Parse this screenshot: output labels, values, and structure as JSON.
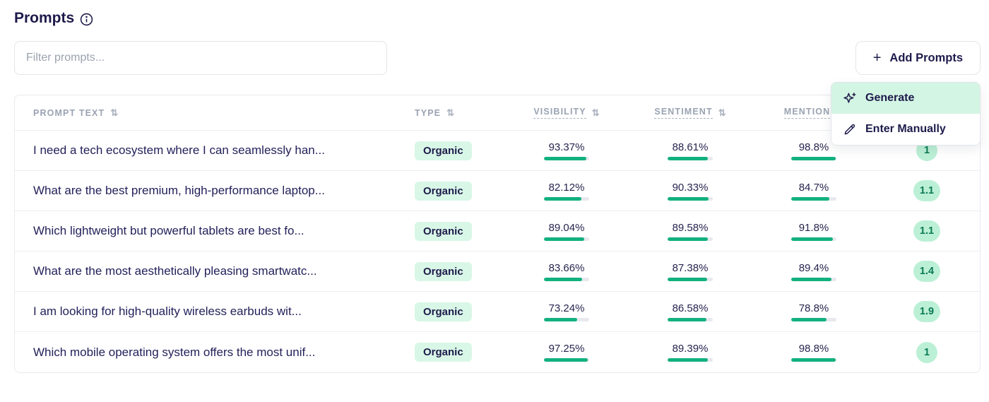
{
  "header": {
    "title": "Prompts"
  },
  "toolbar": {
    "filter_placeholder": "Filter prompts...",
    "add_button": {
      "plus": "+",
      "label": "Add Prompts"
    }
  },
  "menu": {
    "items": [
      {
        "icon": "sparkles-icon",
        "label": "Generate",
        "highlighted": true
      },
      {
        "icon": "pencil-icon",
        "label": "Enter Manually",
        "highlighted": false
      }
    ]
  },
  "table": {
    "sort_icon": "⇅",
    "columns": [
      {
        "label": "Prompt Text",
        "dashed": false
      },
      {
        "label": "Type",
        "dashed": false
      },
      {
        "label": "Visibility",
        "dashed": true
      },
      {
        "label": "Sentiment",
        "dashed": true
      },
      {
        "label": "Mention",
        "dashed": true
      },
      {
        "label": "",
        "dashed": false
      }
    ],
    "rows": [
      {
        "prompt": "I need a tech ecosystem where I can seamlessly han...",
        "type": "Organic",
        "visibility": 93.37,
        "sentiment": 88.61,
        "mention": 98.8,
        "position": "1"
      },
      {
        "prompt": "What are the best premium, high-performance laptop...",
        "type": "Organic",
        "visibility": 82.12,
        "sentiment": 90.33,
        "mention": 84.7,
        "position": "1.1"
      },
      {
        "prompt": "Which lightweight but powerful tablets are best fo...",
        "type": "Organic",
        "visibility": 89.04,
        "sentiment": 89.58,
        "mention": 91.8,
        "position": "1.1"
      },
      {
        "prompt": "What are the most aesthetically pleasing smartwatc...",
        "type": "Organic",
        "visibility": 83.66,
        "sentiment": 87.38,
        "mention": 89.4,
        "position": "1.4"
      },
      {
        "prompt": "I am looking for high-quality wireless earbuds wit...",
        "type": "Organic",
        "visibility": 73.24,
        "sentiment": 86.58,
        "mention": 78.8,
        "position": "1.9"
      },
      {
        "prompt": "Which mobile operating system offers the most unif...",
        "type": "Organic",
        "visibility": 97.25,
        "sentiment": 89.39,
        "mention": 98.8,
        "position": "1"
      }
    ]
  },
  "colors": {
    "navy_text": "#1e1b4b",
    "accent_green": "#12b17f",
    "type_badge_bg": "#d9f7e7",
    "position_badge_bg": "#bcf0d6",
    "menu_highlight_bg": "#d3f5e3",
    "border": "#e7e9ee",
    "header_gray": "#9aa3b2"
  }
}
